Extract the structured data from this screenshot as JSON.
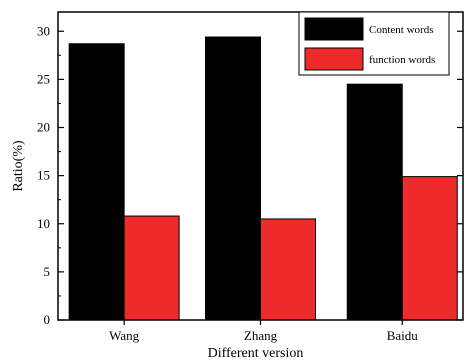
{
  "chart_data": {
    "type": "bar",
    "xlabel": "Different version",
    "ylabel": "Ratio(%)",
    "categories": [
      "Wang",
      "Zhang",
      "Baidu"
    ],
    "ylim": [
      0,
      32
    ],
    "yticks": [
      0,
      5,
      10,
      15,
      20,
      25,
      30
    ],
    "grid": false,
    "legend_position": "top-right",
    "series": [
      {
        "name": "Content words",
        "color": "#000000",
        "values": [
          28.7,
          29.4,
          24.5
        ]
      },
      {
        "name": "function words",
        "color": "#ee2b2b",
        "values": [
          10.8,
          10.5,
          14.9
        ]
      }
    ]
  }
}
